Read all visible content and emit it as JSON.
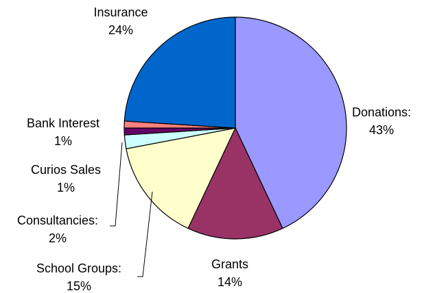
{
  "chart_data": {
    "type": "pie",
    "title": "",
    "start": "top, clockwise",
    "slices": [
      {
        "name": "Donations:",
        "pct": "43%",
        "value": 43,
        "color": "#9999ff"
      },
      {
        "name": "Grants",
        "pct": "14%",
        "value": 14,
        "color": "#993366"
      },
      {
        "name": "School Groups:",
        "pct": "15%",
        "value": 15,
        "color": "#ffffcc"
      },
      {
        "name": "Consultancies:",
        "pct": "2%",
        "value": 2,
        "color": "#ccffff"
      },
      {
        "name": "Curios Sales",
        "pct": "1%",
        "value": 1,
        "color": "#660066"
      },
      {
        "name": "Bank Interest",
        "pct": "1%",
        "value": 1,
        "color": "#ff8080"
      },
      {
        "name": "Insurance",
        "pct": "24%",
        "value": 24,
        "color": "#0066cc"
      }
    ]
  }
}
